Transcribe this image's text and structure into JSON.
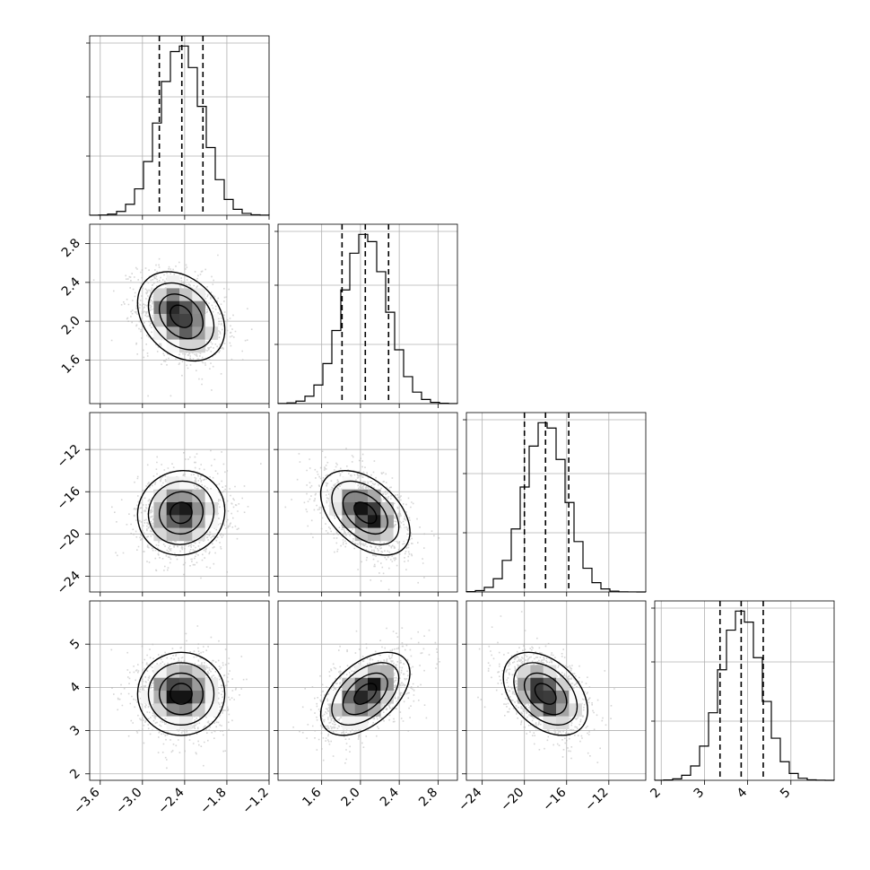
{
  "chart_data": {
    "type": "corner",
    "description_of_layout": "lower-triangular grid of 1D histograms on the diagonal and 2D density scatter plots below",
    "parameters": [
      {
        "range": [
          -3.75,
          -1.2
        ],
        "ticks": [
          -3.6,
          -3.0,
          -2.4,
          -1.8,
          -1.2
        ],
        "tick_labels": [
          "−3.6",
          "−3.0",
          "−2.4",
          "−1.8",
          "−1.2"
        ],
        "mean": -2.45,
        "sd": 0.31,
        "quantiles": [
          -2.76,
          -2.44,
          -2.14
        ]
      },
      {
        "range": [
          1.15,
          3.0
        ],
        "ticks": [
          1.6,
          2.0,
          2.4,
          2.8
        ],
        "tick_labels": [
          "1.6",
          "2.0",
          "2.4",
          "2.8"
        ],
        "mean": 2.05,
        "sd": 0.23,
        "quantiles": [
          1.81,
          2.05,
          2.29
        ]
      },
      {
        "range": [
          -25.5,
          -8.5
        ],
        "ticks": [
          -24,
          -20,
          -16,
          -12
        ],
        "tick_labels": [
          "−24",
          "−20",
          "−16",
          "−12"
        ],
        "mean": -18.0,
        "sd": 2.0,
        "quantiles": [
          -20.0,
          -18.0,
          -15.8
        ]
      },
      {
        "range": [
          1.85,
          6.0
        ],
        "ticks": [
          2,
          3,
          4,
          5
        ],
        "tick_labels": [
          "2",
          "3",
          "4",
          "5"
        ],
        "mean": 3.85,
        "sd": 0.48,
        "quantiles": [
          3.36,
          3.85,
          4.36
        ]
      }
    ],
    "correlations": {
      "1-0": -0.3,
      "2-0": 0.05,
      "2-1": -0.45,
      "3-0": 0.0,
      "3-1": 0.5,
      "3-2": -0.4
    },
    "histogram_bins": 20,
    "contour_levels": 3,
    "grid": true
  }
}
